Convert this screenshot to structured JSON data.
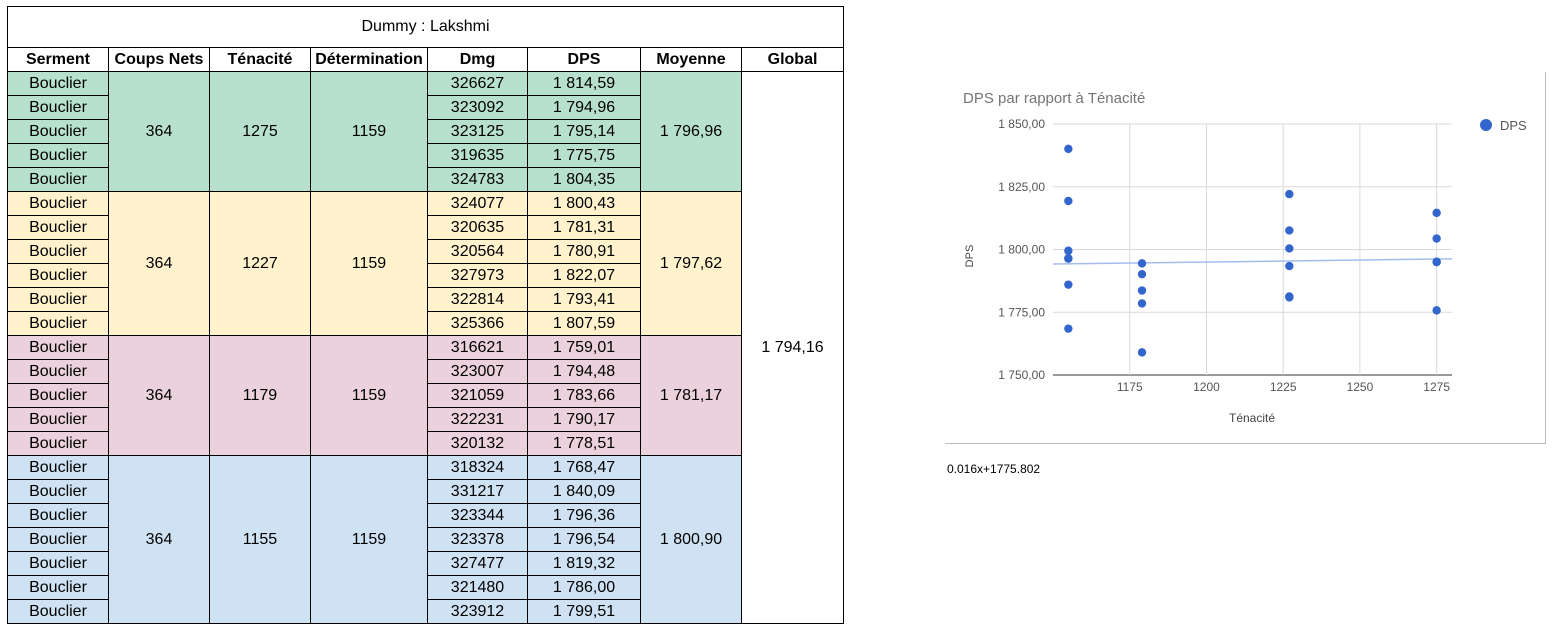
{
  "table": {
    "title": "Dummy : Lakshmi",
    "headers": [
      "Serment",
      "Coups Nets",
      "Ténacité",
      "Détermination",
      "Dmg",
      "DPS",
      "Moyenne",
      "Global"
    ],
    "global": "1 794,16",
    "groups": [
      {
        "color": "#b7e1cd",
        "coups_nets": "364",
        "tenacite": "1275",
        "determination": "1159",
        "moyenne": "1 796,96",
        "rows": [
          {
            "serment": "Bouclier",
            "dmg": "326627",
            "dps": "1 814,59"
          },
          {
            "serment": "Bouclier",
            "dmg": "323092",
            "dps": "1 794,96"
          },
          {
            "serment": "Bouclier",
            "dmg": "323125",
            "dps": "1 795,14"
          },
          {
            "serment": "Bouclier",
            "dmg": "319635",
            "dps": "1 775,75"
          },
          {
            "serment": "Bouclier",
            "dmg": "324783",
            "dps": "1 804,35"
          }
        ]
      },
      {
        "color": "#fff2cc",
        "coups_nets": "364",
        "tenacite": "1227",
        "determination": "1159",
        "moyenne": "1 797,62",
        "rows": [
          {
            "serment": "Bouclier",
            "dmg": "324077",
            "dps": "1 800,43"
          },
          {
            "serment": "Bouclier",
            "dmg": "320635",
            "dps": "1 781,31"
          },
          {
            "serment": "Bouclier",
            "dmg": "320564",
            "dps": "1 780,91"
          },
          {
            "serment": "Bouclier",
            "dmg": "327973",
            "dps": "1 822,07"
          },
          {
            "serment": "Bouclier",
            "dmg": "322814",
            "dps": "1 793,41"
          },
          {
            "serment": "Bouclier",
            "dmg": "325366",
            "dps": "1 807,59"
          }
        ]
      },
      {
        "color": "#ead1dc",
        "coups_nets": "364",
        "tenacite": "1179",
        "determination": "1159",
        "moyenne": "1 781,17",
        "rows": [
          {
            "serment": "Bouclier",
            "dmg": "316621",
            "dps": "1 759,01"
          },
          {
            "serment": "Bouclier",
            "dmg": "323007",
            "dps": "1 794,48"
          },
          {
            "serment": "Bouclier",
            "dmg": "321059",
            "dps": "1 783,66"
          },
          {
            "serment": "Bouclier",
            "dmg": "322231",
            "dps": "1 790,17"
          },
          {
            "serment": "Bouclier",
            "dmg": "320132",
            "dps": "1 778,51"
          }
        ]
      },
      {
        "color": "#cfe2f3",
        "coups_nets": "364",
        "tenacite": "1155",
        "determination": "1159",
        "moyenne": "1 800,90",
        "rows": [
          {
            "serment": "Bouclier",
            "dmg": "318324",
            "dps": "1 768,47"
          },
          {
            "serment": "Bouclier",
            "dmg": "331217",
            "dps": "1 840,09"
          },
          {
            "serment": "Bouclier",
            "dmg": "323344",
            "dps": "1 796,36"
          },
          {
            "serment": "Bouclier",
            "dmg": "323378",
            "dps": "1 796,54"
          },
          {
            "serment": "Bouclier",
            "dmg": "327477",
            "dps": "1 819,32"
          },
          {
            "serment": "Bouclier",
            "dmg": "321480",
            "dps": "1 786,00"
          },
          {
            "serment": "Bouclier",
            "dmg": "323912",
            "dps": "1 799,51"
          }
        ]
      }
    ]
  },
  "chart_data": {
    "type": "scatter",
    "title": "DPS par rapport à Ténacité",
    "xlabel": "Ténacité",
    "ylabel": "DPS",
    "xlim": [
      1150,
      1280
    ],
    "ylim": [
      1750,
      1850
    ],
    "x_ticks": [
      {
        "value": 1175,
        "label": "1175"
      },
      {
        "value": 1200,
        "label": "1200"
      },
      {
        "value": 1225,
        "label": "1225"
      },
      {
        "value": 1250,
        "label": "1250"
      },
      {
        "value": 1275,
        "label": "1275"
      }
    ],
    "y_ticks": [
      {
        "value": 1750,
        "label": "1 750,00"
      },
      {
        "value": 1775,
        "label": "1 775,00"
      },
      {
        "value": 1800,
        "label": "1 800,00"
      },
      {
        "value": 1825,
        "label": "1 825,00"
      },
      {
        "value": 1850,
        "label": "1 850,00"
      }
    ],
    "grid": true,
    "legend": {
      "position": "top-right"
    },
    "series": [
      {
        "name": "DPS",
        "color": "#3366cc",
        "x": [
          1275,
          1275,
          1275,
          1275,
          1275,
          1227,
          1227,
          1227,
          1227,
          1227,
          1227,
          1179,
          1179,
          1179,
          1179,
          1179,
          1155,
          1155,
          1155,
          1155,
          1155,
          1155,
          1155
        ],
        "y": [
          1814.59,
          1794.96,
          1795.14,
          1775.75,
          1804.35,
          1800.43,
          1781.31,
          1780.91,
          1822.07,
          1793.41,
          1807.59,
          1759.01,
          1794.48,
          1783.66,
          1790.17,
          1778.51,
          1768.47,
          1840.09,
          1796.36,
          1796.54,
          1819.32,
          1786.0,
          1799.51
        ]
      }
    ],
    "trendline": {
      "slope": 0.016,
      "intercept": 1775.802,
      "color": "#a4bdf0"
    }
  },
  "formula_text": "0.016x+1775.802"
}
